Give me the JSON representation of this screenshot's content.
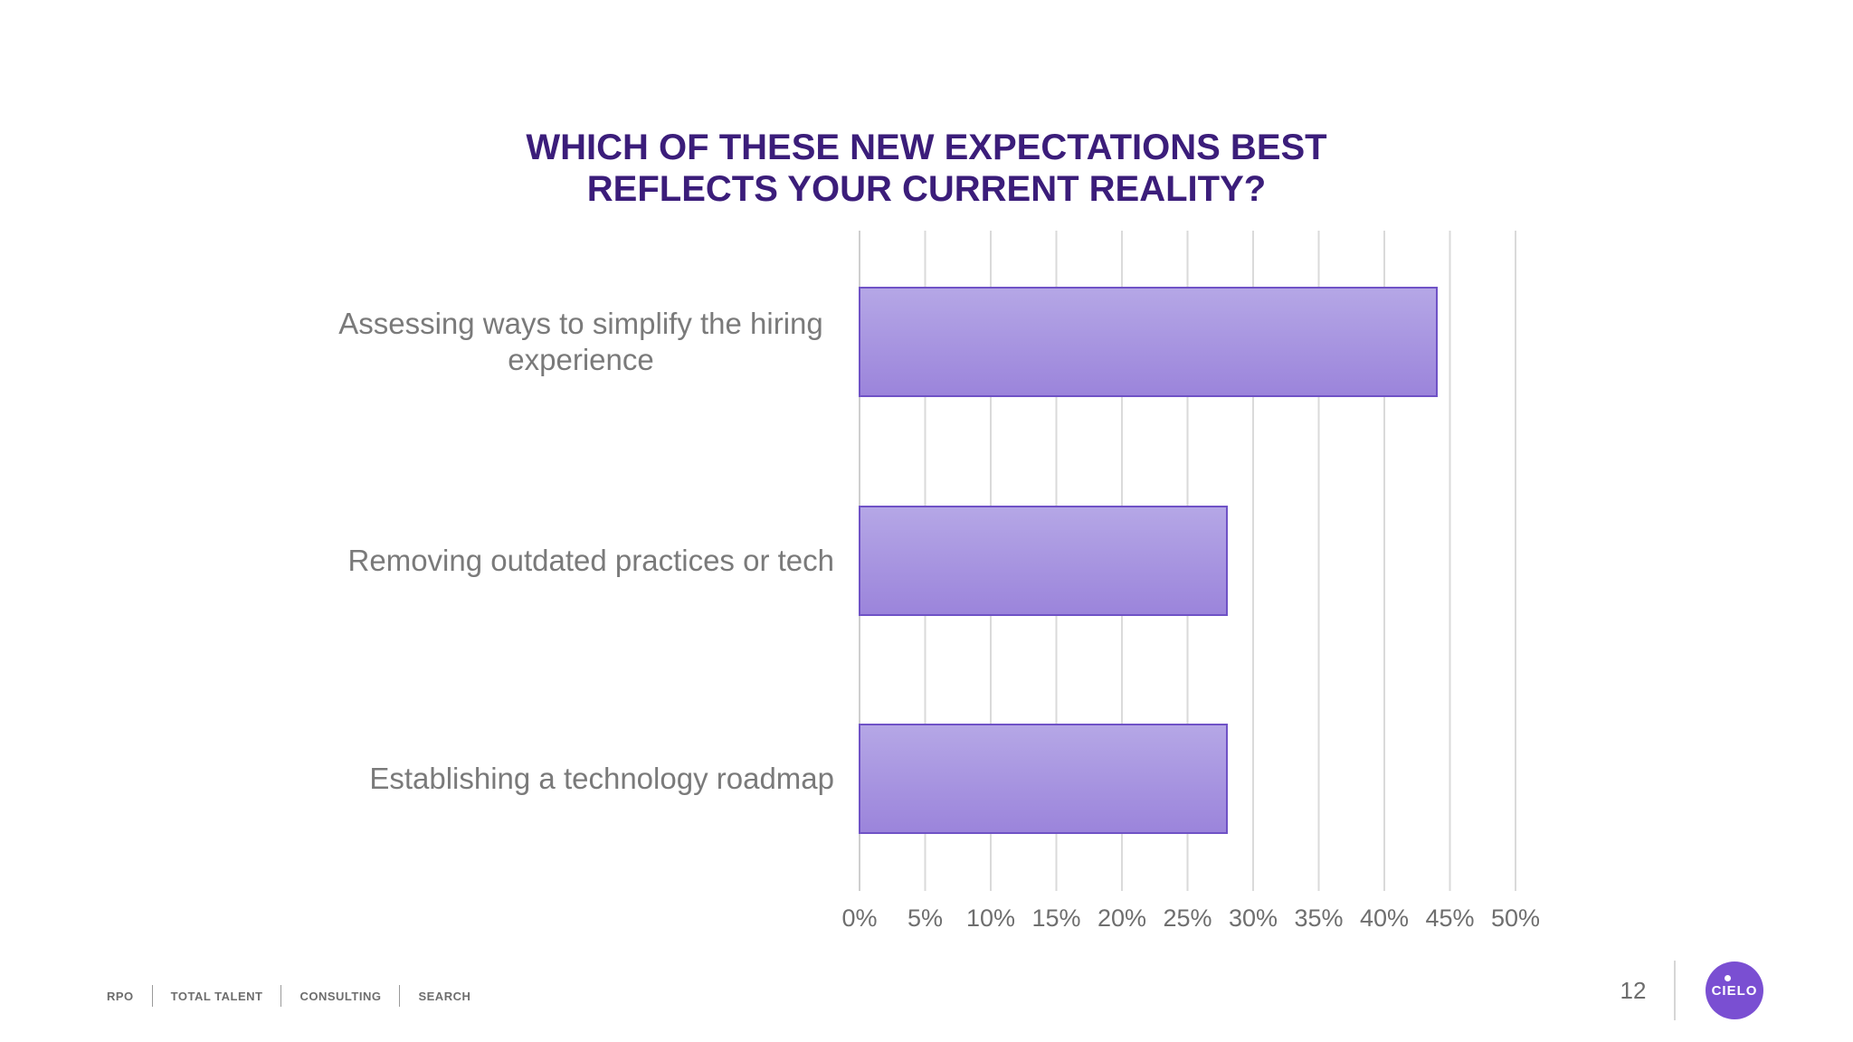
{
  "title": {
    "line1": "WHICH OF THESE NEW EXPECTATIONS BEST",
    "line2": "REFLECTS YOUR CURRENT REALITY?"
  },
  "chart_data": {
    "type": "bar",
    "orientation": "horizontal",
    "categories": [
      [
        "Assessing ways to simplify the hiring",
        "experience"
      ],
      [
        "Removing outdated practices or tech"
      ],
      [
        "Establishing a technology roadmap"
      ]
    ],
    "values": [
      44,
      28,
      28
    ],
    "unit": "%",
    "xlim": [
      0,
      50
    ],
    "tick_step": 5,
    "tick_labels": [
      "0%",
      "5%",
      "10%",
      "15%",
      "20%",
      "25%",
      "30%",
      "35%",
      "40%",
      "45%",
      "50%"
    ],
    "grid": "vertical",
    "bar_color_top": "#b5a7e6",
    "bar_color_bottom": "#9b84db",
    "bar_border": "#6f52c6"
  },
  "footer": {
    "items": [
      "RPO",
      "TOTAL TALENT",
      "CONSULTING",
      "SEARCH"
    ],
    "page_number": "12",
    "logo_text": "CIELO"
  }
}
